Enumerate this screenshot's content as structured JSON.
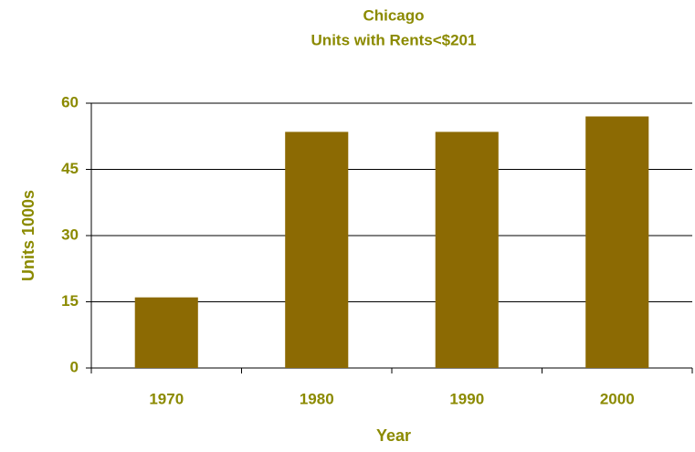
{
  "chart_data": {
    "type": "bar",
    "title": "Chicago",
    "subtitle": "Units with Rents<$201",
    "x_label": "Year",
    "y_label": "Units 1000s",
    "categories": [
      "1970",
      "1980",
      "1990",
      "2000"
    ],
    "values": [
      16,
      53.5,
      53.5,
      57
    ],
    "color": "#8c6a03",
    "ylim": [
      0,
      60
    ],
    "yticks": [
      0,
      15,
      30,
      45,
      60
    ],
    "grid": true
  }
}
